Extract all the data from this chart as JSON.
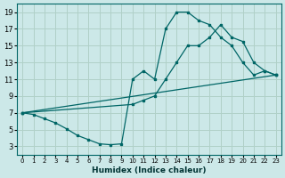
{
  "xlabel": "Humidex (Indice chaleur)",
  "bg_color": "#cce8e8",
  "grid_color": "#b0d0c8",
  "line_color": "#006666",
  "xlim": [
    -0.5,
    23.5
  ],
  "ylim": [
    2,
    20
  ],
  "xticks": [
    0,
    1,
    2,
    3,
    4,
    5,
    6,
    7,
    8,
    9,
    10,
    11,
    12,
    13,
    14,
    15,
    16,
    17,
    18,
    19,
    20,
    21,
    22,
    23
  ],
  "yticks": [
    3,
    5,
    7,
    9,
    11,
    13,
    15,
    17,
    19
  ],
  "line1_x": [
    0,
    1,
    2,
    3,
    4,
    5,
    6,
    7,
    8,
    9,
    10,
    11,
    12,
    13,
    14,
    15,
    16,
    17,
    18,
    19,
    20,
    21,
    22,
    23
  ],
  "line1_y": [
    7,
    6.8,
    6.3,
    5.8,
    5.1,
    4.3,
    3.8,
    3.3,
    3.2,
    3.3,
    11,
    12,
    11,
    17,
    19,
    19,
    18,
    17.5,
    16,
    15,
    13,
    11.5,
    12,
    11.5
  ],
  "line2_x": [
    0,
    10,
    11,
    12,
    13,
    14,
    15,
    16,
    17,
    18,
    19,
    20,
    21,
    22,
    23
  ],
  "line2_y": [
    7,
    8,
    8.5,
    9,
    11,
    13,
    15,
    15,
    16,
    17.5,
    16,
    15.5,
    13,
    12,
    11.5
  ],
  "line3_x": [
    0,
    23
  ],
  "line3_y": [
    7,
    11.5
  ]
}
